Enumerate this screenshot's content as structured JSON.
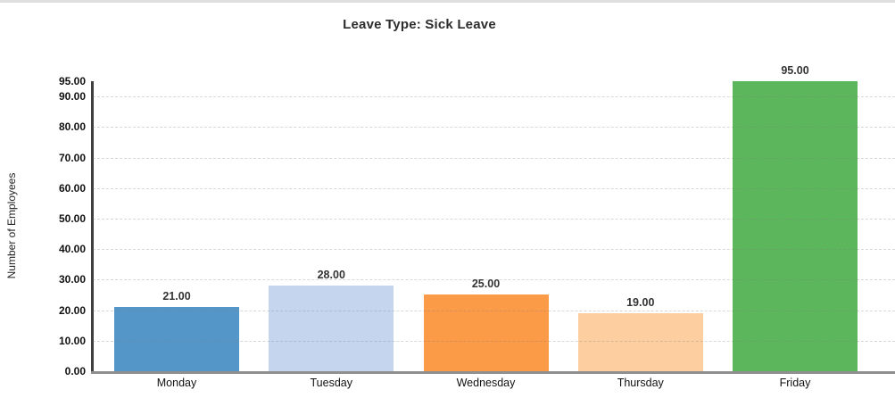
{
  "page": {
    "background_color": "#ffffff",
    "top_border_color": "#dfdfdf"
  },
  "chart_data": {
    "type": "bar",
    "title": "Leave Type: Sick Leave",
    "categories": [
      "Monday",
      "Tuesday",
      "Wednesday",
      "Thursday",
      "Friday"
    ],
    "values": [
      21,
      28,
      25,
      19,
      95
    ],
    "value_labels": [
      "21.00",
      "28.00",
      "25.00",
      "19.00",
      "95.00"
    ],
    "bar_colors": [
      "#5596c8",
      "#c5d5ee",
      "#fb9a47",
      "#fdcfa0",
      "#5cb75c"
    ],
    "xlabel": "",
    "ylabel": "Number of Employees",
    "ylim": [
      0,
      95
    ],
    "yticks": [
      0,
      10,
      20,
      30,
      40,
      50,
      60,
      70,
      80,
      90,
      95
    ],
    "ytick_labels": [
      "0.00",
      "10.00",
      "20.00",
      "30.00",
      "40.00",
      "50.00",
      "60.00",
      "70.00",
      "80.00",
      "90.00",
      "95.00"
    ],
    "gridlines": [
      10,
      20,
      30,
      40,
      50,
      60,
      70,
      80,
      90
    ],
    "grid": "horizontal-dashed",
    "grid_color": "#d9d9d9",
    "axis_color": "#3f3f3f",
    "legend": "none",
    "title_color": "#2d2d2d",
    "label_color": "#333333"
  }
}
